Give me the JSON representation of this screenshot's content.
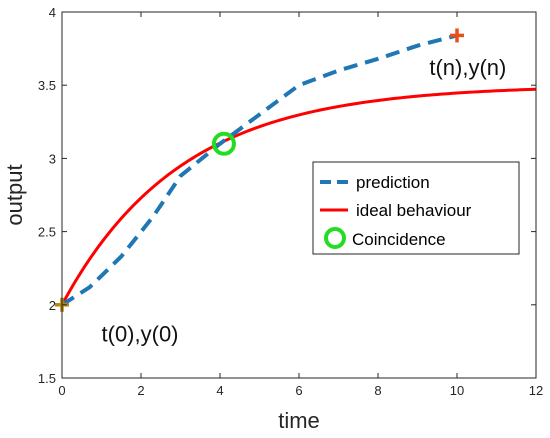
{
  "chart_data": {
    "type": "line",
    "title": "",
    "xlabel": "time",
    "ylabel": "output",
    "xlim": [
      0,
      12
    ],
    "ylim": [
      1.5,
      4
    ],
    "xticks": [
      "0",
      "2",
      "4",
      "6",
      "8",
      "10",
      "12"
    ],
    "yticks": [
      "1.5",
      "2",
      "2.5",
      "3",
      "3.5",
      "4"
    ],
    "grid": false,
    "legend_position": "center-right",
    "series": [
      {
        "name": "prediction",
        "style": "dashed",
        "color": "#1f77b4",
        "points": [
          [
            0,
            2.0
          ],
          [
            0.7,
            2.12
          ],
          [
            1.5,
            2.33
          ],
          [
            2.3,
            2.6
          ],
          [
            3.0,
            2.88
          ],
          [
            4.0,
            3.1
          ],
          [
            5.0,
            3.3
          ],
          [
            6.0,
            3.5
          ],
          [
            7.0,
            3.6
          ],
          [
            8.0,
            3.68
          ],
          [
            9.0,
            3.77
          ],
          [
            10.0,
            3.84
          ]
        ]
      },
      {
        "name": "ideal behaviour",
        "style": "solid",
        "color": "#ff0000",
        "function": "3.5 - 1.5*exp(-t/3)"
      },
      {
        "name": "Coincidence",
        "style": "circle-marker",
        "color": "#22dd22",
        "points": [
          [
            4.1,
            3.1
          ]
        ]
      }
    ],
    "markers": [
      {
        "x": 0,
        "y": 2.0,
        "symbol": "+",
        "color": "#b8860b"
      },
      {
        "x": 10,
        "y": 3.84,
        "symbol": "+",
        "color": "#e8501a"
      }
    ],
    "annotations": [
      {
        "text": "t(0),y(0)",
        "x": 1.0,
        "y": 1.75
      },
      {
        "text": "t(n),y(n)",
        "x": 9.3,
        "y": 3.57
      }
    ]
  }
}
